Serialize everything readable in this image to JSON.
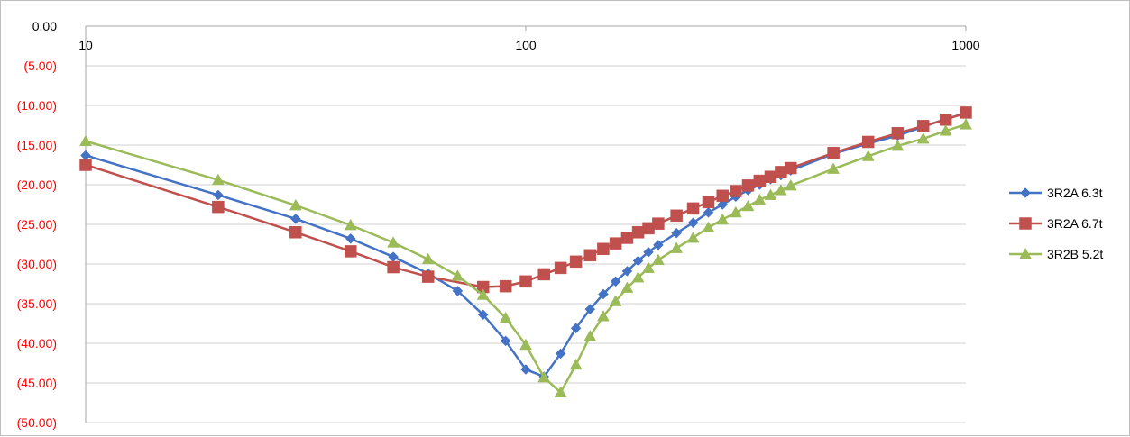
{
  "chart_data": {
    "type": "line",
    "title": "",
    "xlabel": "",
    "ylabel": "",
    "x_scale": "log",
    "xlim": [
      10,
      1000
    ],
    "ylim": [
      -50,
      0
    ],
    "x_tick_labels": [
      "10",
      "100",
      "1000"
    ],
    "x_tick_values": [
      10,
      100,
      1000
    ],
    "y_tick_values": [
      0,
      -5,
      -10,
      -15,
      -20,
      -25,
      -30,
      -35,
      -40,
      -45,
      -50
    ],
    "y_tick_labels": [
      "0.00",
      "(5.00)",
      "(10.00)",
      "(15.00)",
      "(20.00)",
      "(25.00)",
      "(30.00)",
      "(35.00)",
      "(40.00)",
      "(45.00)",
      "(50.00)"
    ],
    "y_tick_label_colors": {
      "zero": "#000000",
      "negative": "#ff0000"
    },
    "grid": "horizontal",
    "legend_position": "right",
    "series": [
      {
        "name": "3R2A 6.3t",
        "color": "#4472c4",
        "marker": "diamond",
        "x": [
          10,
          20,
          30,
          40,
          50,
          60,
          70,
          80,
          90,
          100,
          110,
          120,
          130,
          140,
          150,
          160,
          170,
          180,
          190,
          200,
          220,
          240,
          260,
          280,
          300,
          320,
          340,
          360,
          380,
          400,
          500,
          600,
          700,
          800,
          900,
          1000
        ],
        "y": [
          -16.3,
          -21.3,
          -24.3,
          -26.8,
          -29.1,
          -31.2,
          -33.4,
          -36.4,
          -39.7,
          -43.3,
          -44.2,
          -41.3,
          -38.1,
          -35.7,
          -33.8,
          -32.2,
          -30.9,
          -29.6,
          -28.5,
          -27.6,
          -26.1,
          -24.8,
          -23.5,
          -22.5,
          -21.5,
          -20.7,
          -20.0,
          -19.3,
          -18.8,
          -18.2,
          -16.1,
          -14.8,
          -13.8,
          -12.7,
          -11.7,
          -11.0
        ]
      },
      {
        "name": "3R2A 6.7t",
        "color": "#c0504d",
        "marker": "square",
        "x": [
          10,
          20,
          30,
          40,
          50,
          60,
          80,
          90,
          100,
          110,
          120,
          130,
          140,
          150,
          160,
          170,
          180,
          190,
          200,
          220,
          240,
          260,
          280,
          300,
          320,
          340,
          360,
          380,
          400,
          500,
          600,
          700,
          800,
          900,
          1000
        ],
        "y": [
          -17.5,
          -22.8,
          -26.0,
          -28.4,
          -30.4,
          -31.6,
          -32.9,
          -32.8,
          -32.2,
          -31.3,
          -30.5,
          -29.7,
          -28.9,
          -28.1,
          -27.4,
          -26.7,
          -26.0,
          -25.5,
          -24.9,
          -23.9,
          -23.0,
          -22.2,
          -21.4,
          -20.8,
          -20.1,
          -19.5,
          -19.0,
          -18.4,
          -17.9,
          -16.0,
          -14.6,
          -13.5,
          -12.6,
          -11.8,
          -10.9
        ]
      },
      {
        "name": "3R2B 5.2t",
        "color": "#9bbb59",
        "marker": "triangle",
        "x": [
          10,
          20,
          30,
          40,
          50,
          60,
          70,
          80,
          90,
          100,
          110,
          120,
          130,
          140,
          150,
          160,
          170,
          180,
          190,
          200,
          220,
          240,
          260,
          280,
          300,
          320,
          340,
          360,
          380,
          400,
          500,
          600,
          700,
          800,
          900,
          1000
        ],
        "y": [
          -14.5,
          -19.4,
          -22.6,
          -25.1,
          -27.3,
          -29.4,
          -31.5,
          -33.9,
          -36.8,
          -40.2,
          -44.3,
          -46.2,
          -42.7,
          -39.1,
          -36.6,
          -34.7,
          -33.0,
          -31.7,
          -30.5,
          -29.5,
          -28.0,
          -26.7,
          -25.4,
          -24.4,
          -23.5,
          -22.7,
          -21.9,
          -21.3,
          -20.7,
          -20.1,
          -18.0,
          -16.4,
          -15.1,
          -14.2,
          -13.2,
          -12.4
        ]
      }
    ]
  }
}
